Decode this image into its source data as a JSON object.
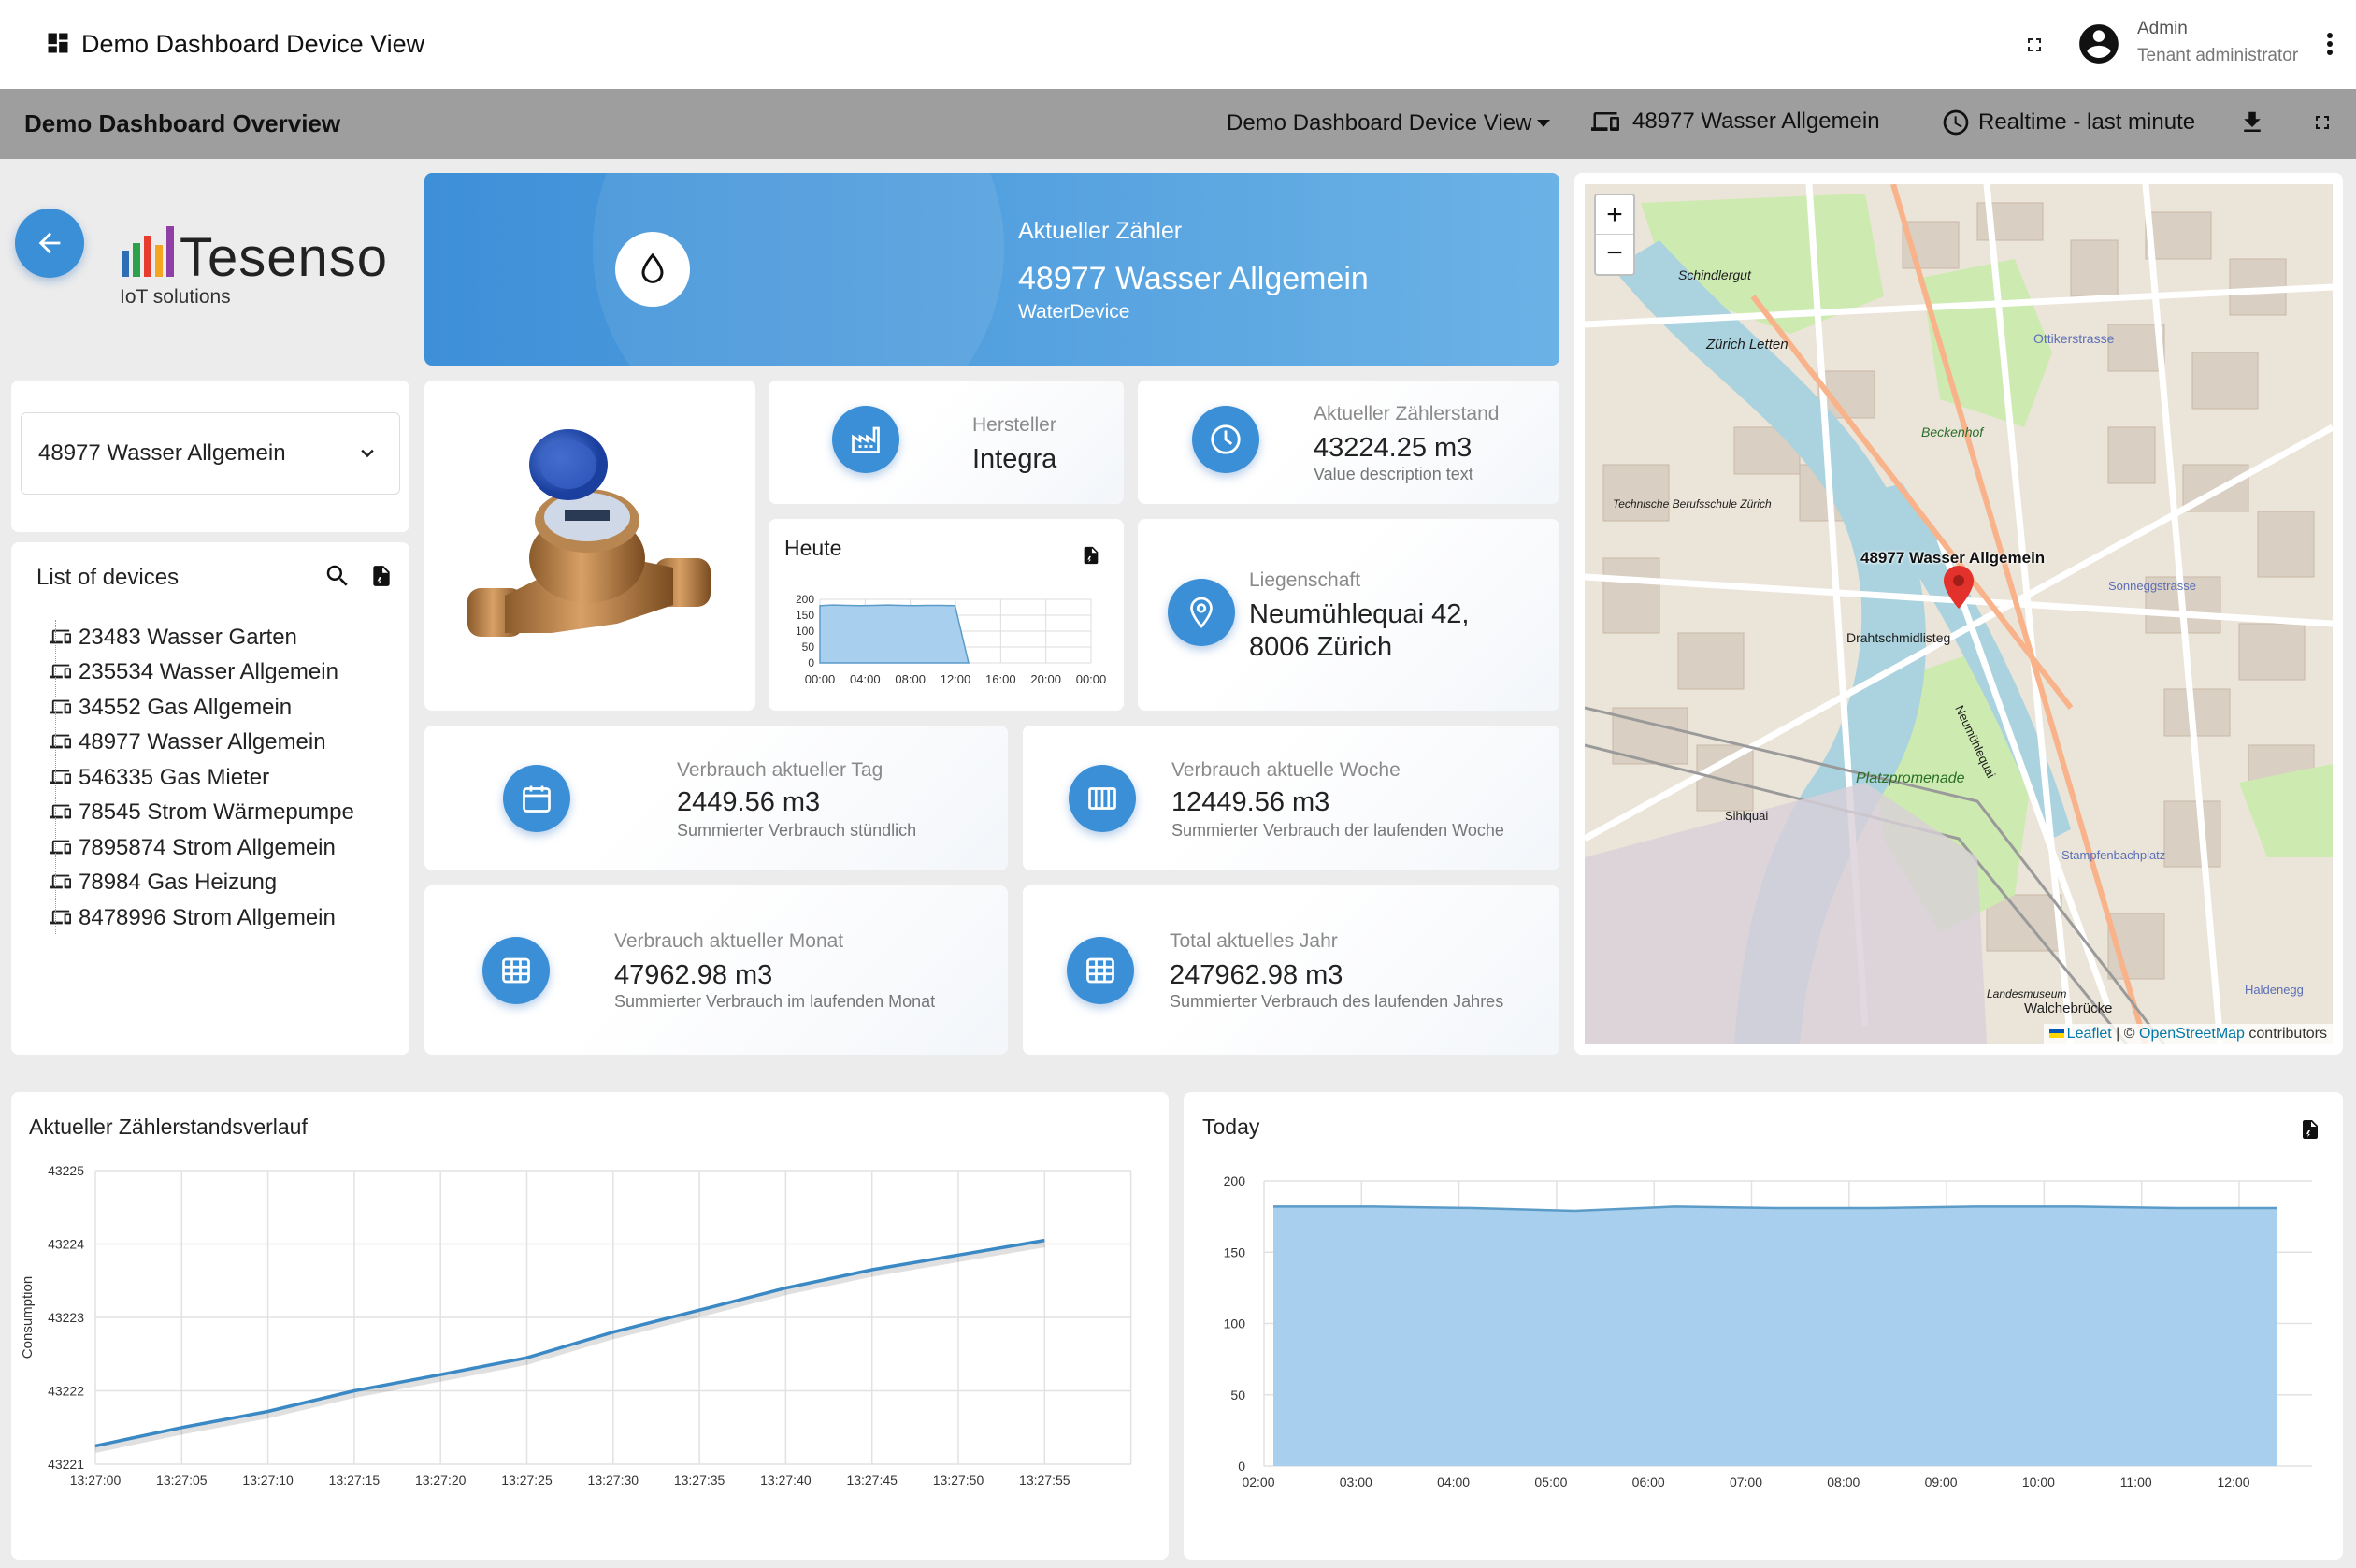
{
  "topbar": {
    "title": "Demo Dashboard Device View",
    "user_name": "Admin",
    "user_role": "Tenant administrator"
  },
  "secbar": {
    "title": "Demo Dashboard Overview",
    "dashboard_select": "Demo Dashboard Device View",
    "device": "48977 Wasser Allgemein",
    "timewindow": "Realtime - last minute"
  },
  "logo": {
    "brand": "Tesenso",
    "tagline": "IoT solutions"
  },
  "header_card": {
    "label": "Aktueller Zähler",
    "device": "48977 Wasser Allgemein",
    "type": "WaterDevice"
  },
  "device_select": {
    "value": "48977 Wasser Allgemein"
  },
  "device_list": {
    "title": "List of devices",
    "items": [
      "23483 Wasser Garten",
      "235534 Wasser Allgemein",
      "34552 Gas Allgemein",
      "48977 Wasser Allgemein",
      "546335 Gas Mieter",
      "78545 Strom Wärmepumpe",
      "7895874 Strom Allgemein",
      "78984 Gas Heizung",
      "8478996 Strom Allgemein"
    ]
  },
  "manufacturer": {
    "label": "Hersteller",
    "value": "Integra"
  },
  "meter_reading": {
    "label": "Aktueller Zählerstand",
    "value": "43224.25 m3",
    "desc": "Value description text"
  },
  "property": {
    "label": "Liegenschaft",
    "line1": "Neumühlequai 42,",
    "line2": "8006 Zürich"
  },
  "heute": {
    "title": "Heute",
    "yticks": [
      "200",
      "150",
      "100",
      "50",
      "0"
    ],
    "xticks": [
      "00:00",
      "04:00",
      "08:00",
      "12:00",
      "16:00",
      "20:00",
      "00:00"
    ],
    "values": [
      180,
      182,
      181,
      180,
      181,
      182,
      181,
      180,
      181,
      181,
      180,
      0
    ]
  },
  "stats": [
    {
      "label": "Verbrauch aktueller Tag",
      "value": "2449.56 m3",
      "desc": "Summierter Verbrauch stündlich"
    },
    {
      "label": "Verbrauch aktuelle Woche",
      "value": "12449.56 m3",
      "desc": "Summierter Verbrauch der laufenden Woche"
    },
    {
      "label": "Verbrauch aktueller Monat",
      "value": "47962.98 m3",
      "desc": "Summierter Verbrauch im laufenden Monat"
    },
    {
      "label": "Total aktuelles Jahr",
      "value": "247962.98 m3",
      "desc": "Summierter Verbrauch des laufenden Jahres"
    }
  ],
  "map": {
    "marker_label": "48977 Wasser Allgemein",
    "zoom_in": "+",
    "zoom_out": "−",
    "labels": [
      "Schindlergut",
      "Zürich Letten",
      "Beckenhof",
      "Ottikerstrasse",
      "Drahtschmidlisteg",
      "Platzpromenade",
      "Stampfenbachplatz",
      "Walchebrücke",
      "Haldenegg",
      "Sonneggstrasse",
      "Technische Berufsschule Zürich",
      "Sihlquai",
      "Neumühlequai",
      "Landesmuseum"
    ],
    "attribution_leaflet": "Leaflet",
    "attribution_sep": " | © ",
    "attribution_osm": "OpenStreetMap",
    "attribution_tail": " contributors"
  },
  "chart_data": [
    {
      "type": "line",
      "title": "Aktueller Zählerstandsverlauf",
      "ylabel": "Consumption",
      "xlabel": "",
      "ylim": [
        43221,
        43225
      ],
      "yticks": [
        "43225",
        "43224",
        "43223",
        "43222",
        "43221"
      ],
      "x": [
        "13:27:00",
        "13:27:05",
        "13:27:10",
        "13:27:15",
        "13:27:20",
        "13:27:25",
        "13:27:30",
        "13:27:35",
        "13:27:40",
        "13:27:45",
        "13:27:50",
        "13:27:55"
      ],
      "series": [
        {
          "values": [
            43221.25,
            43221.5,
            43221.72,
            43222.0,
            43222.22,
            43222.45,
            43222.8,
            43223.1,
            43223.4,
            43223.65,
            43223.85,
            43224.05
          ]
        }
      ],
      "color": "#3a89c4"
    },
    {
      "type": "area",
      "title": "Today",
      "ylim": [
        0,
        200
      ],
      "yticks": [
        "200",
        "150",
        "100",
        "50",
        "0"
      ],
      "x": [
        "02:00",
        "03:00",
        "04:00",
        "05:00",
        "06:00",
        "07:00",
        "08:00",
        "09:00",
        "10:00",
        "11:00",
        "12:00"
      ],
      "series": [
        {
          "values": [
            182,
            182,
            181,
            179,
            182,
            181,
            181,
            182,
            182,
            181,
            181
          ]
        }
      ],
      "fill": "#a8cfed",
      "stroke": "#5a9bc8"
    }
  ]
}
